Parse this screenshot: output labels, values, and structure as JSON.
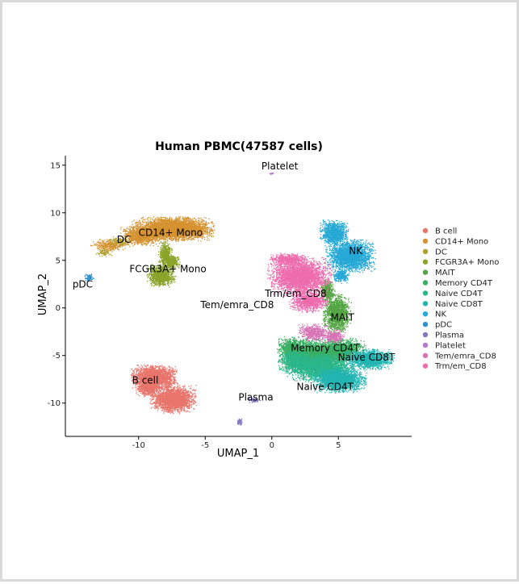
{
  "chart_data": {
    "type": "scatter",
    "title": "Human PBMC(47587 cells)",
    "xlabel": "UMAP_1",
    "ylabel": "UMAP_2",
    "xlim": [
      -15.5,
      10.5
    ],
    "ylim": [
      -13.5,
      16
    ],
    "xticks": [
      -10,
      -5,
      0,
      5
    ],
    "yticks": [
      -10,
      -5,
      0,
      5,
      10,
      15
    ],
    "grid": false,
    "legend_position": "right",
    "clusters": [
      {
        "name": "B cell",
        "color": "#E8756D",
        "label_at": [
          -9.5,
          -7.6
        ],
        "blobs": [
          [
            -8.8,
            -7.3,
            1.3,
            1.0,
            2400
          ],
          [
            -7.4,
            -9.6,
            1.3,
            1.1,
            2400
          ],
          [
            -9.3,
            -8.4,
            0.7,
            0.7,
            600
          ]
        ]
      },
      {
        "name": "CD14+ Mono",
        "color": "#D59230",
        "label_at": [
          -7.6,
          7.9
        ],
        "blobs": [
          [
            -7.4,
            8.3,
            2.3,
            0.95,
            4200
          ],
          [
            -9.8,
            7.6,
            1.2,
            0.8,
            1100
          ],
          [
            -12.2,
            6.6,
            1.1,
            0.5,
            350
          ]
        ]
      },
      {
        "name": "DC",
        "color": "#B29E2E",
        "label_at": [
          -11.1,
          7.2
        ],
        "blobs": [
          [
            -11.4,
            7.0,
            0.6,
            0.4,
            140
          ],
          [
            -12.6,
            5.8,
            0.5,
            0.4,
            80
          ]
        ]
      },
      {
        "name": "FCGR3A+ Mono",
        "color": "#8AA42A",
        "label_at": [
          -7.8,
          4.1
        ],
        "blobs": [
          [
            -8.3,
            3.4,
            0.8,
            0.9,
            1100
          ],
          [
            -8.0,
            5.6,
            0.4,
            1.1,
            500
          ],
          [
            -7.5,
            4.8,
            0.5,
            0.6,
            300
          ]
        ]
      },
      {
        "name": "MAIT",
        "color": "#53A443",
        "label_at": [
          5.3,
          -1.0
        ],
        "blobs": [
          [
            4.9,
            -0.6,
            0.8,
            1.6,
            1500
          ],
          [
            4.2,
            1.8,
            0.4,
            0.9,
            400
          ]
        ]
      },
      {
        "name": "Memory CD4T",
        "color": "#3AAF63",
        "label_at": [
          4.0,
          -4.2
        ],
        "blobs": [
          [
            3.2,
            -5.0,
            2.0,
            1.3,
            3500
          ],
          [
            5.3,
            -4.4,
            1.3,
            0.9,
            1300
          ],
          [
            1.6,
            -4.2,
            0.9,
            0.9,
            700
          ]
        ]
      },
      {
        "name": "Naive CD4T",
        "color": "#2BB68B",
        "label_at": [
          4.0,
          -8.3
        ],
        "blobs": [
          [
            3.6,
            -6.3,
            1.9,
            1.1,
            2600
          ],
          [
            1.8,
            -5.6,
            1.0,
            0.9,
            700
          ]
        ]
      },
      {
        "name": "Naive CD8T",
        "color": "#22B5B2",
        "label_at": [
          7.1,
          -5.2
        ],
        "blobs": [
          [
            5.1,
            -7.6,
            1.5,
            1.0,
            2200
          ],
          [
            7.3,
            -5.4,
            1.4,
            0.8,
            1700
          ]
        ]
      },
      {
        "name": "NK",
        "color": "#27A9D6",
        "label_at": [
          6.3,
          6.0
        ],
        "blobs": [
          [
            5.9,
            5.5,
            1.4,
            1.3,
            2600
          ],
          [
            4.7,
            7.9,
            0.8,
            1.0,
            1100
          ],
          [
            5.2,
            3.4,
            0.5,
            0.6,
            300
          ]
        ]
      },
      {
        "name": "pDC",
        "color": "#2F8FD0",
        "label_at": [
          -14.2,
          2.5
        ],
        "blobs": [
          [
            -13.7,
            3.2,
            0.25,
            0.3,
            80
          ]
        ]
      },
      {
        "name": "Plasma",
        "color": "#8378C0",
        "label_at": [
          -1.2,
          -9.4
        ],
        "blobs": [
          [
            -1.3,
            -9.7,
            0.35,
            0.2,
            80
          ],
          [
            -2.4,
            -12.0,
            0.18,
            0.3,
            50
          ]
        ]
      },
      {
        "name": "Platelet",
        "color": "#B57ACD",
        "label_at": [
          0.6,
          14.9
        ],
        "blobs": [
          [
            0.0,
            14.1,
            0.12,
            0.1,
            15
          ]
        ]
      },
      {
        "name": "Tem/emra_CD8",
        "color": "#D772B5",
        "label_at": [
          -2.6,
          0.3
        ],
        "blobs": [
          [
            3.2,
            -2.6,
            0.9,
            0.7,
            500
          ],
          [
            4.7,
            -3.0,
            0.6,
            0.5,
            300
          ]
        ]
      },
      {
        "name": "Trm/em_CD8",
        "color": "#EE6DAE",
        "label_at": [
          1.8,
          1.5
        ],
        "blobs": [
          [
            2.1,
            3.3,
            1.8,
            1.5,
            3500
          ],
          [
            2.8,
            0.7,
            1.1,
            0.9,
            1000
          ],
          [
            1.3,
            5.1,
            1.1,
            0.5,
            600
          ]
        ]
      }
    ]
  }
}
